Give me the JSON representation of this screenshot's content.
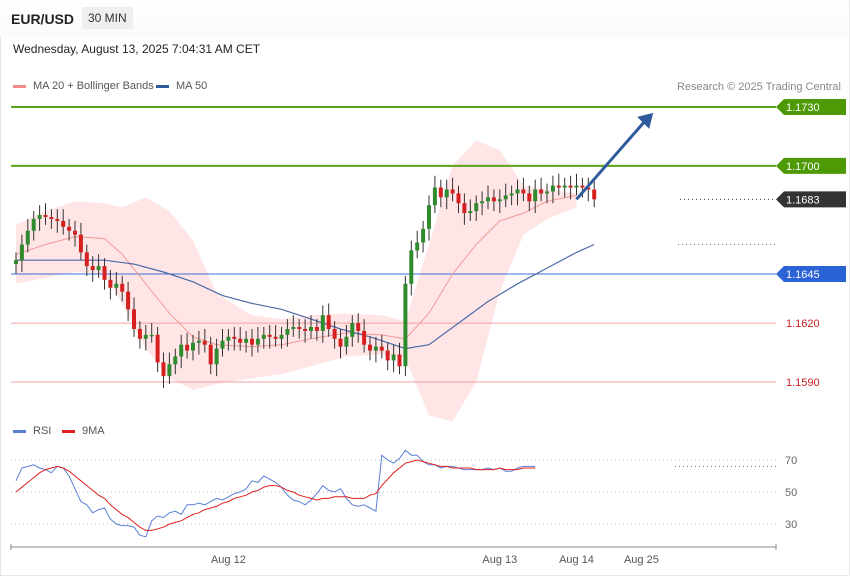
{
  "header": {
    "symbol": "EUR/USD",
    "timeframe": "30 MIN",
    "datetime": "Wednesday, August 13, 2025 7:04:31 AM CET"
  },
  "legend": {
    "ma20": {
      "label": "MA 20 + Bollinger Bands",
      "color": "#f48b8b"
    },
    "ma50": {
      "label": "MA 50",
      "color": "#2f5a9b"
    },
    "copyright": "Research © 2025 Trading Central"
  },
  "rsi_legend": {
    "rsi": {
      "label": "RSI",
      "color": "#5b7fd6"
    },
    "ma9": {
      "label": "9MA",
      "color": "#e02020"
    }
  },
  "chart_data": [
    {
      "type": "candlestick",
      "title": "",
      "ylim": [
        1.1568,
        1.1748
      ],
      "x_ticks": [
        {
          "label": "Aug 12",
          "index": 36
        },
        {
          "label": "Aug 13",
          "index": 82
        },
        {
          "label": "Aug 14",
          "index": 95
        },
        {
          "label": "Aug 25",
          "index": 106
        }
      ],
      "levels": [
        {
          "name": "resistance-2",
          "value": 1.173,
          "label": "1.1730",
          "style": "green"
        },
        {
          "name": "resistance-1",
          "value": 1.17,
          "label": "1.1700",
          "style": "green"
        },
        {
          "name": "last-price",
          "value": 1.1683,
          "label": "1.1683",
          "style": "dark"
        },
        {
          "name": "pivot",
          "value": 1.1645,
          "label": "1.1645",
          "style": "blue"
        },
        {
          "name": "support-1",
          "value": 1.162,
          "label": "1.1620",
          "style": "red"
        },
        {
          "name": "support-2",
          "value": 1.159,
          "label": "1.1590",
          "style": "red"
        }
      ],
      "closes": [
        1.1652,
        1.166,
        1.1667,
        1.1673,
        1.1675,
        1.1674,
        1.1673,
        1.1672,
        1.1669,
        1.1667,
        1.1665,
        1.1656,
        1.1649,
        1.1647,
        1.1649,
        1.1642,
        1.1638,
        1.164,
        1.1636,
        1.1627,
        1.1617,
        1.1612,
        1.1614,
        1.1614,
        1.16,
        1.1593,
        1.1599,
        1.1603,
        1.1609,
        1.1606,
        1.161,
        1.1611,
        1.1609,
        1.1599,
        1.1607,
        1.1611,
        1.1613,
        1.1612,
        1.161,
        1.1612,
        1.1609,
        1.1612,
        1.1614,
        1.1613,
        1.1612,
        1.1614,
        1.1617,
        1.1618,
        1.1617,
        1.1616,
        1.1618,
        1.1616,
        1.1624,
        1.1617,
        1.1612,
        1.1608,
        1.1613,
        1.162,
        1.1616,
        1.1609,
        1.1606,
        1.1608,
        1.1606,
        1.1601,
        1.1604,
        1.1598,
        1.164,
        1.1657,
        1.1661,
        1.1668,
        1.168,
        1.1689,
        1.1684,
        1.1688,
        1.1686,
        1.1681,
        1.1676,
        1.1677,
        1.1681,
        1.1682,
        1.1684,
        1.1682,
        1.1683,
        1.1685,
        1.1686,
        1.1688,
        1.1686,
        1.1682,
        1.1688,
        1.1686,
        1.1687,
        1.169,
        1.1689,
        1.169,
        1.1689,
        1.169,
        1.1689,
        1.1688,
        1.1683
      ],
      "ma20_points": [
        [
          0,
          1.1655
        ],
        [
          5,
          1.166
        ],
        [
          10,
          1.1664
        ],
        [
          15,
          1.1663
        ],
        [
          18,
          1.1655
        ],
        [
          22,
          1.164
        ],
        [
          26,
          1.1625
        ],
        [
          30,
          1.1613
        ],
        [
          34,
          1.1609
        ],
        [
          40,
          1.1608
        ],
        [
          45,
          1.1609
        ],
        [
          50,
          1.1612
        ],
        [
          56,
          1.1615
        ],
        [
          62,
          1.1614
        ],
        [
          66,
          1.1612
        ],
        [
          70,
          1.1625
        ],
        [
          74,
          1.1645
        ],
        [
          78,
          1.166
        ],
        [
          82,
          1.1672
        ],
        [
          86,
          1.1676
        ],
        [
          90,
          1.1682
        ],
        [
          95,
          1.1685
        ]
      ],
      "ma50_points": [
        [
          0,
          1.1652
        ],
        [
          5,
          1.1652
        ],
        [
          10,
          1.1652
        ],
        [
          15,
          1.1652
        ],
        [
          20,
          1.165
        ],
        [
          25,
          1.1646
        ],
        [
          30,
          1.1641
        ],
        [
          35,
          1.1634
        ],
        [
          40,
          1.163
        ],
        [
          45,
          1.1627
        ],
        [
          50,
          1.1622
        ],
        [
          55,
          1.1617
        ],
        [
          60,
          1.1613
        ],
        [
          66,
          1.1607
        ],
        [
          70,
          1.1609
        ],
        [
          75,
          1.162
        ],
        [
          80,
          1.1631
        ],
        [
          85,
          1.164
        ],
        [
          90,
          1.1648
        ],
        [
          95,
          1.1656
        ],
        [
          98,
          1.166
        ]
      ],
      "bb_upper": [
        [
          0,
          1.167
        ],
        [
          5,
          1.1677
        ],
        [
          10,
          1.1682
        ],
        [
          15,
          1.1681
        ],
        [
          18,
          1.1679
        ],
        [
          22,
          1.1684
        ],
        [
          26,
          1.1677
        ],
        [
          30,
          1.1662
        ],
        [
          34,
          1.1635
        ],
        [
          40,
          1.1624
        ],
        [
          45,
          1.1622
        ],
        [
          50,
          1.1624
        ],
        [
          56,
          1.1625
        ],
        [
          62,
          1.1624
        ],
        [
          66,
          1.1621
        ],
        [
          70,
          1.166
        ],
        [
          74,
          1.17
        ],
        [
          78,
          1.1713
        ],
        [
          82,
          1.1708
        ],
        [
          86,
          1.169
        ],
        [
          90,
          1.1688
        ],
        [
          95,
          1.1686
        ]
      ],
      "bb_lower": [
        [
          0,
          1.164
        ],
        [
          5,
          1.1643
        ],
        [
          10,
          1.1646
        ],
        [
          15,
          1.1645
        ],
        [
          18,
          1.163
        ],
        [
          22,
          1.1607
        ],
        [
          26,
          1.1592
        ],
        [
          30,
          1.1586
        ],
        [
          34,
          1.1589
        ],
        [
          40,
          1.1592
        ],
        [
          45,
          1.1594
        ],
        [
          50,
          1.1598
        ],
        [
          56,
          1.1603
        ],
        [
          62,
          1.1604
        ],
        [
          66,
          1.1602
        ],
        [
          70,
          1.1573
        ],
        [
          74,
          1.157
        ],
        [
          78,
          1.159
        ],
        [
          82,
          1.1636
        ],
        [
          86,
          1.1665
        ],
        [
          90,
          1.1673
        ],
        [
          95,
          1.1679
        ]
      ],
      "forecast_arrow": {
        "from": [
          95,
          1.1683
        ],
        "to": [
          108,
          1.1727
        ]
      }
    },
    {
      "type": "line",
      "title": "RSI",
      "ylim": [
        20,
        80
      ],
      "y_ticks": [
        70,
        50,
        30
      ],
      "series": [
        {
          "name": "RSI",
          "color": "#5b7fd6",
          "values": [
            57,
            65,
            66,
            67,
            65,
            64,
            62,
            66,
            65,
            60,
            52,
            44,
            42,
            37,
            39,
            40,
            33,
            30,
            29,
            29,
            28,
            23,
            22,
            32,
            35,
            34,
            37,
            38,
            36,
            42,
            42,
            43,
            42,
            44,
            46,
            45,
            47,
            49,
            50,
            52,
            57,
            56,
            60,
            58,
            56,
            53,
            48,
            45,
            44,
            42,
            45,
            49,
            54,
            51,
            50,
            52,
            46,
            42,
            41,
            42,
            40,
            38,
            73,
            70,
            68,
            71,
            76,
            73,
            73,
            69,
            67,
            67,
            65,
            66,
            66,
            65,
            64,
            64,
            64,
            64,
            65,
            64,
            65,
            63,
            63,
            65,
            66,
            66,
            66
          ]
        },
        {
          "name": "9MA",
          "color": "#e02020",
          "values": [
            50,
            53,
            56,
            59,
            62,
            64,
            65,
            66,
            65,
            63,
            60,
            57,
            54,
            51,
            48,
            46,
            42,
            39,
            36,
            34,
            31,
            28,
            26,
            26,
            27,
            28,
            30,
            31,
            32,
            34,
            36,
            37,
            39,
            40,
            41,
            43,
            44,
            46,
            47,
            48,
            50,
            51,
            53,
            54,
            54,
            53,
            51,
            50,
            48,
            47,
            46,
            45,
            46,
            46,
            47,
            47,
            47,
            46,
            46,
            46,
            48,
            49,
            54,
            58,
            62,
            65,
            68,
            69,
            70,
            69,
            68,
            67,
            66,
            66,
            65,
            65,
            65,
            65,
            64,
            64,
            64,
            64,
            65,
            64,
            64,
            64,
            65,
            65,
            65
          ]
        }
      ]
    }
  ]
}
